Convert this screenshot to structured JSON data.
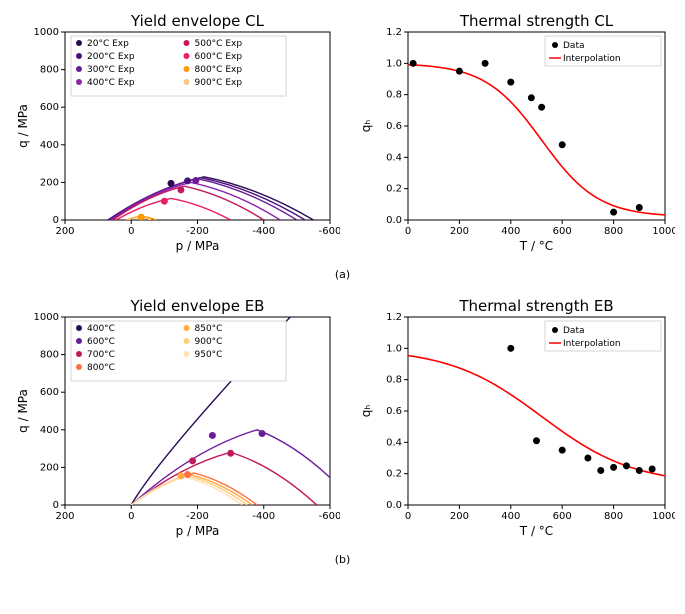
{
  "common": {
    "bg": "#ffffff",
    "axis_color": "#000000",
    "legend_border": "#cccccc"
  },
  "panel_a_left": {
    "title": "Yield envelope CL",
    "xlabel": "p / MPa",
    "ylabel": "q / MPa",
    "type": "line+scatter",
    "x_ticks": [
      200,
      0,
      -200,
      -400,
      -600
    ],
    "y_ticks": [
      0,
      200,
      400,
      600,
      800,
      1000
    ],
    "temps": [
      {
        "label": "20°C Exp",
        "color": "#2a0a52"
      },
      {
        "label": "200°C Exp",
        "color": "#4a1079"
      },
      {
        "label": "300°C Exp",
        "color": "#6a1b9a"
      },
      {
        "label": "400°C Exp",
        "color": "#8e24aa"
      },
      {
        "label": "500°C Exp",
        "color": "#c2185b"
      },
      {
        "label": "600°C Exp",
        "color": "#e91e63"
      },
      {
        "label": "800°C Exp",
        "color": "#ff9800"
      },
      {
        "label": "900°C Exp",
        "color": "#ffc680"
      }
    ],
    "envelopes": [
      {
        "color": "#2a0a52",
        "xstart": 70,
        "peak_x": -220,
        "peak_y": 230,
        "xend": -550
      },
      {
        "color": "#4a1079",
        "xstart": 70,
        "peak_x": -210,
        "peak_y": 225,
        "xend": -525
      },
      {
        "color": "#6a1b9a",
        "xstart": 65,
        "peak_x": -200,
        "peak_y": 220,
        "xend": -500
      },
      {
        "color": "#8e24aa",
        "xstart": 60,
        "peak_x": -180,
        "peak_y": 200,
        "xend": -450
      },
      {
        "color": "#c2185b",
        "xstart": 55,
        "peak_x": -160,
        "peak_y": 180,
        "xend": -400
      },
      {
        "color": "#e91e63",
        "xstart": 45,
        "peak_x": -120,
        "peak_y": 115,
        "xend": -300
      },
      {
        "color": "#ff9800",
        "xstart": 15,
        "peak_x": -30,
        "peak_y": 20,
        "xend": -75
      },
      {
        "color": "#ffc680",
        "xstart": 12,
        "peak_x": -25,
        "peak_y": 15,
        "xend": -60
      }
    ],
    "points": [
      {
        "x": -120,
        "y": 195,
        "color": "#2a0a52"
      },
      {
        "x": -170,
        "y": 208,
        "color": "#4a1079"
      },
      {
        "x": -195,
        "y": 210,
        "color": "#6a1b9a"
      },
      {
        "x": -150,
        "y": 160,
        "color": "#c2185b"
      },
      {
        "x": -100,
        "y": 100,
        "color": "#e91e63"
      },
      {
        "x": -30,
        "y": 15,
        "color": "#ff9800"
      }
    ]
  },
  "panel_a_right": {
    "title": "Thermal strength CL",
    "xlabel": "T / °C",
    "ylabel": "qₕ",
    "type": "line+scatter",
    "x_ticks": [
      0,
      200,
      400,
      600,
      800,
      1000
    ],
    "y_ticks": [
      0.0,
      0.2,
      0.4,
      0.6,
      0.8,
      1.0,
      1.2
    ],
    "legend": {
      "data": "Data",
      "interp": "Interpolation"
    },
    "data_points": [
      {
        "x": 20,
        "y": 1.0
      },
      {
        "x": 200,
        "y": 0.95
      },
      {
        "x": 300,
        "y": 1.0
      },
      {
        "x": 400,
        "y": 0.88
      },
      {
        "x": 480,
        "y": 0.78
      },
      {
        "x": 520,
        "y": 0.72
      },
      {
        "x": 600,
        "y": 0.48
      },
      {
        "x": 800,
        "y": 0.05
      },
      {
        "x": 900,
        "y": 0.08
      }
    ],
    "curve_color": "#ff0000",
    "point_color": "#000000"
  },
  "panel_b_left": {
    "title": "Yield envelope EB",
    "xlabel": "p / MPa",
    "ylabel": "q / MPa",
    "type": "line+scatter",
    "x_ticks": [
      200,
      0,
      -200,
      -400,
      -600
    ],
    "y_ticks": [
      0,
      200,
      400,
      600,
      800,
      1000
    ],
    "temps": [
      {
        "label": "400°C",
        "color": "#2a0a52"
      },
      {
        "label": "600°C",
        "color": "#6a1b9a"
      },
      {
        "label": "700°C",
        "color": "#c2185b"
      },
      {
        "label": "800°C",
        "color": "#ff7043"
      },
      {
        "label": "850°C",
        "color": "#ffab40"
      },
      {
        "label": "900°C",
        "color": "#ffcc80"
      },
      {
        "label": "950°C",
        "color": "#ffe0b2"
      }
    ],
    "envelopes": [
      {
        "color": "#2a0a52",
        "kind": "open",
        "xstart": 0,
        "slope_y_at_end": 1000,
        "slope_x_end": -480
      },
      {
        "color": "#6a1b9a",
        "kind": "closed",
        "xstart": 0,
        "peak_x": -380,
        "peak_y": 400,
        "xend": -680
      },
      {
        "color": "#c2185b",
        "kind": "closed",
        "xstart": 0,
        "peak_x": -300,
        "peak_y": 280,
        "xend": -560
      },
      {
        "color": "#ff7043",
        "kind": "closed",
        "xstart": 0,
        "peak_x": -190,
        "peak_y": 170,
        "xend": -380
      },
      {
        "color": "#ffab40",
        "kind": "closed",
        "xstart": 0,
        "peak_x": -180,
        "peak_y": 160,
        "xend": -365
      },
      {
        "color": "#ffcc80",
        "kind": "closed",
        "xstart": 0,
        "peak_x": -170,
        "peak_y": 155,
        "xend": -350
      },
      {
        "color": "#ffe0b2",
        "kind": "closed",
        "xstart": 0,
        "peak_x": -160,
        "peak_y": 150,
        "xend": -335
      }
    ],
    "points": [
      {
        "x": -240,
        "y": 820,
        "color": "#2a0a52"
      },
      {
        "x": -245,
        "y": 370,
        "color": "#6a1b9a"
      },
      {
        "x": -395,
        "y": 380,
        "color": "#6a1b9a"
      },
      {
        "x": -185,
        "y": 235,
        "color": "#c2185b"
      },
      {
        "x": -300,
        "y": 275,
        "color": "#c2185b"
      },
      {
        "x": -170,
        "y": 162,
        "color": "#ff7043"
      },
      {
        "x": -150,
        "y": 155,
        "color": "#ffab40"
      }
    ]
  },
  "panel_b_right": {
    "title": "Thermal strength EB",
    "xlabel": "T / °C",
    "ylabel": "qₕ",
    "type": "line+scatter",
    "x_ticks": [
      0,
      200,
      400,
      600,
      800,
      1000
    ],
    "y_ticks": [
      0.0,
      0.2,
      0.4,
      0.6,
      0.8,
      1.0,
      1.2
    ],
    "legend": {
      "data": "Data",
      "interp": "Interpolation"
    },
    "data_points": [
      {
        "x": 400,
        "y": 1.0
      },
      {
        "x": 500,
        "y": 0.41
      },
      {
        "x": 600,
        "y": 0.35
      },
      {
        "x": 700,
        "y": 0.3
      },
      {
        "x": 750,
        "y": 0.22
      },
      {
        "x": 800,
        "y": 0.24
      },
      {
        "x": 850,
        "y": 0.25
      },
      {
        "x": 900,
        "y": 0.22
      },
      {
        "x": 950,
        "y": 0.23
      }
    ],
    "curve_color": "#ff0000",
    "point_color": "#000000"
  },
  "captions": {
    "a": "(a)",
    "b": "(b)"
  }
}
